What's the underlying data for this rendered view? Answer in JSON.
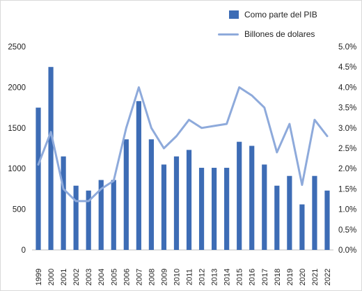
{
  "colors": {
    "bar": "#3d6cb5",
    "line": "#8eaadb",
    "axis": "#bfbfbf",
    "text": "#222222"
  },
  "chart_data": {
    "type": "bar",
    "categories": [
      "1999",
      "2000",
      "2001",
      "2002",
      "2003",
      "2004",
      "2005",
      "2006",
      "2007",
      "2008",
      "2009",
      "2010",
      "2011",
      "2012",
      "2013",
      "2014",
      "2015",
      "2016",
      "2017",
      "2018",
      "2019",
      "2020",
      "2021",
      "2022"
    ],
    "series": [
      {
        "name": "Como parte del PIB",
        "type": "bar",
        "axis": "left",
        "values": [
          1750,
          2250,
          1150,
          790,
          730,
          860,
          860,
          1360,
          1830,
          1360,
          1050,
          1150,
          1230,
          1010,
          1010,
          1010,
          1330,
          1280,
          1050,
          790,
          910,
          560,
          910,
          730
        ]
      },
      {
        "name": "Billones de dolares",
        "type": "line",
        "axis": "right",
        "values": [
          2.1,
          2.9,
          1.5,
          1.2,
          1.2,
          1.5,
          1.7,
          3.0,
          4.0,
          3.0,
          2.5,
          2.8,
          3.2,
          3.0,
          3.05,
          3.1,
          4.0,
          3.8,
          3.5,
          2.4,
          3.1,
          1.6,
          3.2,
          2.8
        ]
      }
    ],
    "y_left": {
      "ylim": [
        0,
        2500
      ],
      "ticks": [
        "0",
        "500",
        "1000",
        "1500",
        "2000",
        "2500"
      ]
    },
    "y_right": {
      "ylim": [
        0,
        5
      ],
      "ticks": [
        "0.0%",
        "0.5%",
        "1.0%",
        "1.5%",
        "2.0%",
        "2.5%",
        "3.0%",
        "3.5%",
        "4.0%",
        "4.5%",
        "5.0%"
      ]
    },
    "legend_placement": "top-right",
    "grid": false,
    "title": "",
    "xlabel": "",
    "ylabel": ""
  }
}
